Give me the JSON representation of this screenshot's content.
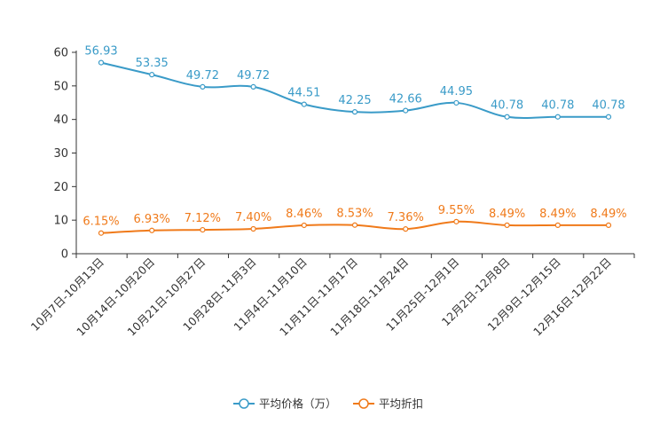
{
  "chart_data": {
    "type": "line",
    "title": "",
    "xlabel": "",
    "ylabel": "",
    "ylim": [
      0,
      60
    ],
    "yticks": [
      0,
      10,
      20,
      30,
      40,
      50,
      60
    ],
    "grid": false,
    "legend_position": "bottom-center",
    "categories": [
      "10月7日-10月13日",
      "10月14日-10月20日",
      "10月21日-10月27日",
      "10月28日-11月3日",
      "11月4日-11月10日",
      "11月11日-11月17日",
      "11月18日-11月24日",
      "11月25日-12月1日",
      "12月2日-12月8日",
      "12月9日-12月15日",
      "12月16日-12月22日"
    ],
    "series": [
      {
        "name": "平均价格（万）",
        "color": "#3a9bc8",
        "values": [
          56.93,
          53.35,
          49.72,
          49.72,
          44.51,
          42.25,
          42.66,
          44.95,
          40.78,
          40.78,
          40.78
        ],
        "labels": [
          "56.93",
          "53.35",
          "49.72",
          "49.72",
          "44.51",
          "42.25",
          "42.66",
          "44.95",
          "40.78",
          "40.78",
          "40.78"
        ]
      },
      {
        "name": "平均折扣",
        "color": "#f07a1a",
        "values": [
          6.15,
          6.93,
          7.12,
          7.4,
          8.46,
          8.53,
          7.36,
          9.55,
          8.49,
          8.49,
          8.49
        ],
        "labels": [
          "6.15%",
          "6.93%",
          "7.12%",
          "7.40%",
          "8.46%",
          "8.53%",
          "7.36%",
          "9.55%",
          "8.49%",
          "8.49%",
          "8.49%"
        ]
      }
    ]
  }
}
